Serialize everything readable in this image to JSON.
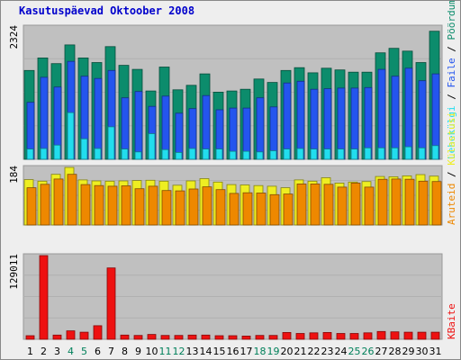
{
  "title": "Kasutuspäevad Oktoober 2008",
  "legend": {
    "top": [
      {
        "label": "Pöördumisi",
        "color": "#0c8c6c"
      },
      {
        "label": "Faile",
        "color": "#2455ee"
      },
      {
        "label": "Lehekülgi",
        "color": "#22ddee"
      }
    ],
    "middle": [
      {
        "label": "Külastusi",
        "color": "#eeee22"
      },
      {
        "label": "Aruteid",
        "color": "#ee8800"
      }
    ],
    "bottom": [
      {
        "label": "KBaite",
        "color": "#ee1111"
      }
    ],
    "separator": " / "
  },
  "chart_data": [
    {
      "type": "bar",
      "panel": "hits",
      "ylabel": "2324",
      "ylim": [
        0,
        2324
      ],
      "categories": [
        "1",
        "2",
        "3",
        "4",
        "5",
        "6",
        "7",
        "8",
        "9",
        "10",
        "11",
        "12",
        "13",
        "14",
        "15",
        "16",
        "17",
        "18",
        "19",
        "20",
        "21",
        "22",
        "23",
        "24",
        "25",
        "26",
        "27",
        "28",
        "29",
        "30",
        "31"
      ],
      "series": [
        {
          "name": "Pöördumisi",
          "color": "#0c8c6c",
          "values": [
            1560,
            1780,
            1680,
            2010,
            1780,
            1700,
            1980,
            1650,
            1580,
            1200,
            1620,
            1220,
            1300,
            1500,
            1180,
            1200,
            1230,
            1410,
            1350,
            1560,
            1610,
            1520,
            1600,
            1570,
            1530,
            1530,
            1870,
            1950,
            1900,
            1700,
            2250
          ]
        },
        {
          "name": "Faile",
          "color": "#2455ee",
          "values": [
            1000,
            1440,
            1270,
            1720,
            1460,
            1420,
            1560,
            1080,
            1190,
            930,
            1110,
            810,
            890,
            1120,
            870,
            900,
            900,
            1080,
            920,
            1340,
            1370,
            1230,
            1240,
            1250,
            1250,
            1260,
            1580,
            1460,
            1600,
            1380,
            1500
          ]
        },
        {
          "name": "Lehekülgi",
          "color": "#22ddee",
          "values": [
            180,
            190,
            250,
            820,
            360,
            190,
            570,
            180,
            130,
            450,
            170,
            120,
            190,
            180,
            180,
            140,
            140,
            130,
            150,
            180,
            190,
            180,
            180,
            180,
            180,
            200,
            200,
            200,
            220,
            200,
            240
          ]
        }
      ],
      "x_highlight_days": [
        "4",
        "5",
        "11",
        "12",
        "18",
        "19",
        "25",
        "26"
      ]
    },
    {
      "type": "bar",
      "panel": "visits",
      "ylabel": "184",
      "ylim": [
        0,
        184
      ],
      "categories": [
        "1",
        "2",
        "3",
        "4",
        "5",
        "6",
        "7",
        "8",
        "9",
        "10",
        "11",
        "12",
        "13",
        "14",
        "15",
        "16",
        "17",
        "18",
        "19",
        "20",
        "21",
        "22",
        "23",
        "24",
        "25",
        "26",
        "27",
        "28",
        "29",
        "30",
        "31"
      ],
      "series": [
        {
          "name": "Külastusi",
          "color": "#eeee22",
          "values": [
            145,
            140,
            162,
            184,
            144,
            141,
            140,
            141,
            142,
            143,
            140,
            127,
            141,
            148,
            137,
            129,
            128,
            126,
            124,
            119,
            144,
            140,
            151,
            134,
            137,
            139,
            155,
            154,
            157,
            161,
            156
          ]
        },
        {
          "name": "Aruteid",
          "color": "#ee8800",
          "values": [
            119,
            130,
            147,
            162,
            129,
            126,
            124,
            125,
            116,
            124,
            110,
            109,
            115,
            122,
            113,
            101,
            103,
            102,
            97,
            99,
            131,
            131,
            130,
            121,
            134,
            121,
            146,
            147,
            146,
            140,
            139
          ]
        }
      ]
    },
    {
      "type": "bar",
      "panel": "kbytes",
      "ylabel": "129011",
      "ylim": [
        0,
        129011
      ],
      "categories": [
        "1",
        "2",
        "3",
        "4",
        "5",
        "6",
        "7",
        "8",
        "9",
        "10",
        "11",
        "12",
        "13",
        "14",
        "15",
        "16",
        "17",
        "18",
        "19",
        "20",
        "21",
        "22",
        "23",
        "24",
        "25",
        "26",
        "27",
        "28",
        "29",
        "30",
        "31"
      ],
      "series": [
        {
          "name": "KBaite",
          "color": "#ee1111",
          "values": [
            5500,
            129011,
            6500,
            13000,
            11000,
            21000,
            110000,
            6500,
            6000,
            7500,
            6000,
            6000,
            6500,
            6500,
            5500,
            5500,
            5000,
            6000,
            6000,
            10500,
            9000,
            10000,
            10500,
            9000,
            9000,
            10000,
            12000,
            11500,
            11000,
            11000,
            11000
          ]
        }
      ]
    }
  ]
}
